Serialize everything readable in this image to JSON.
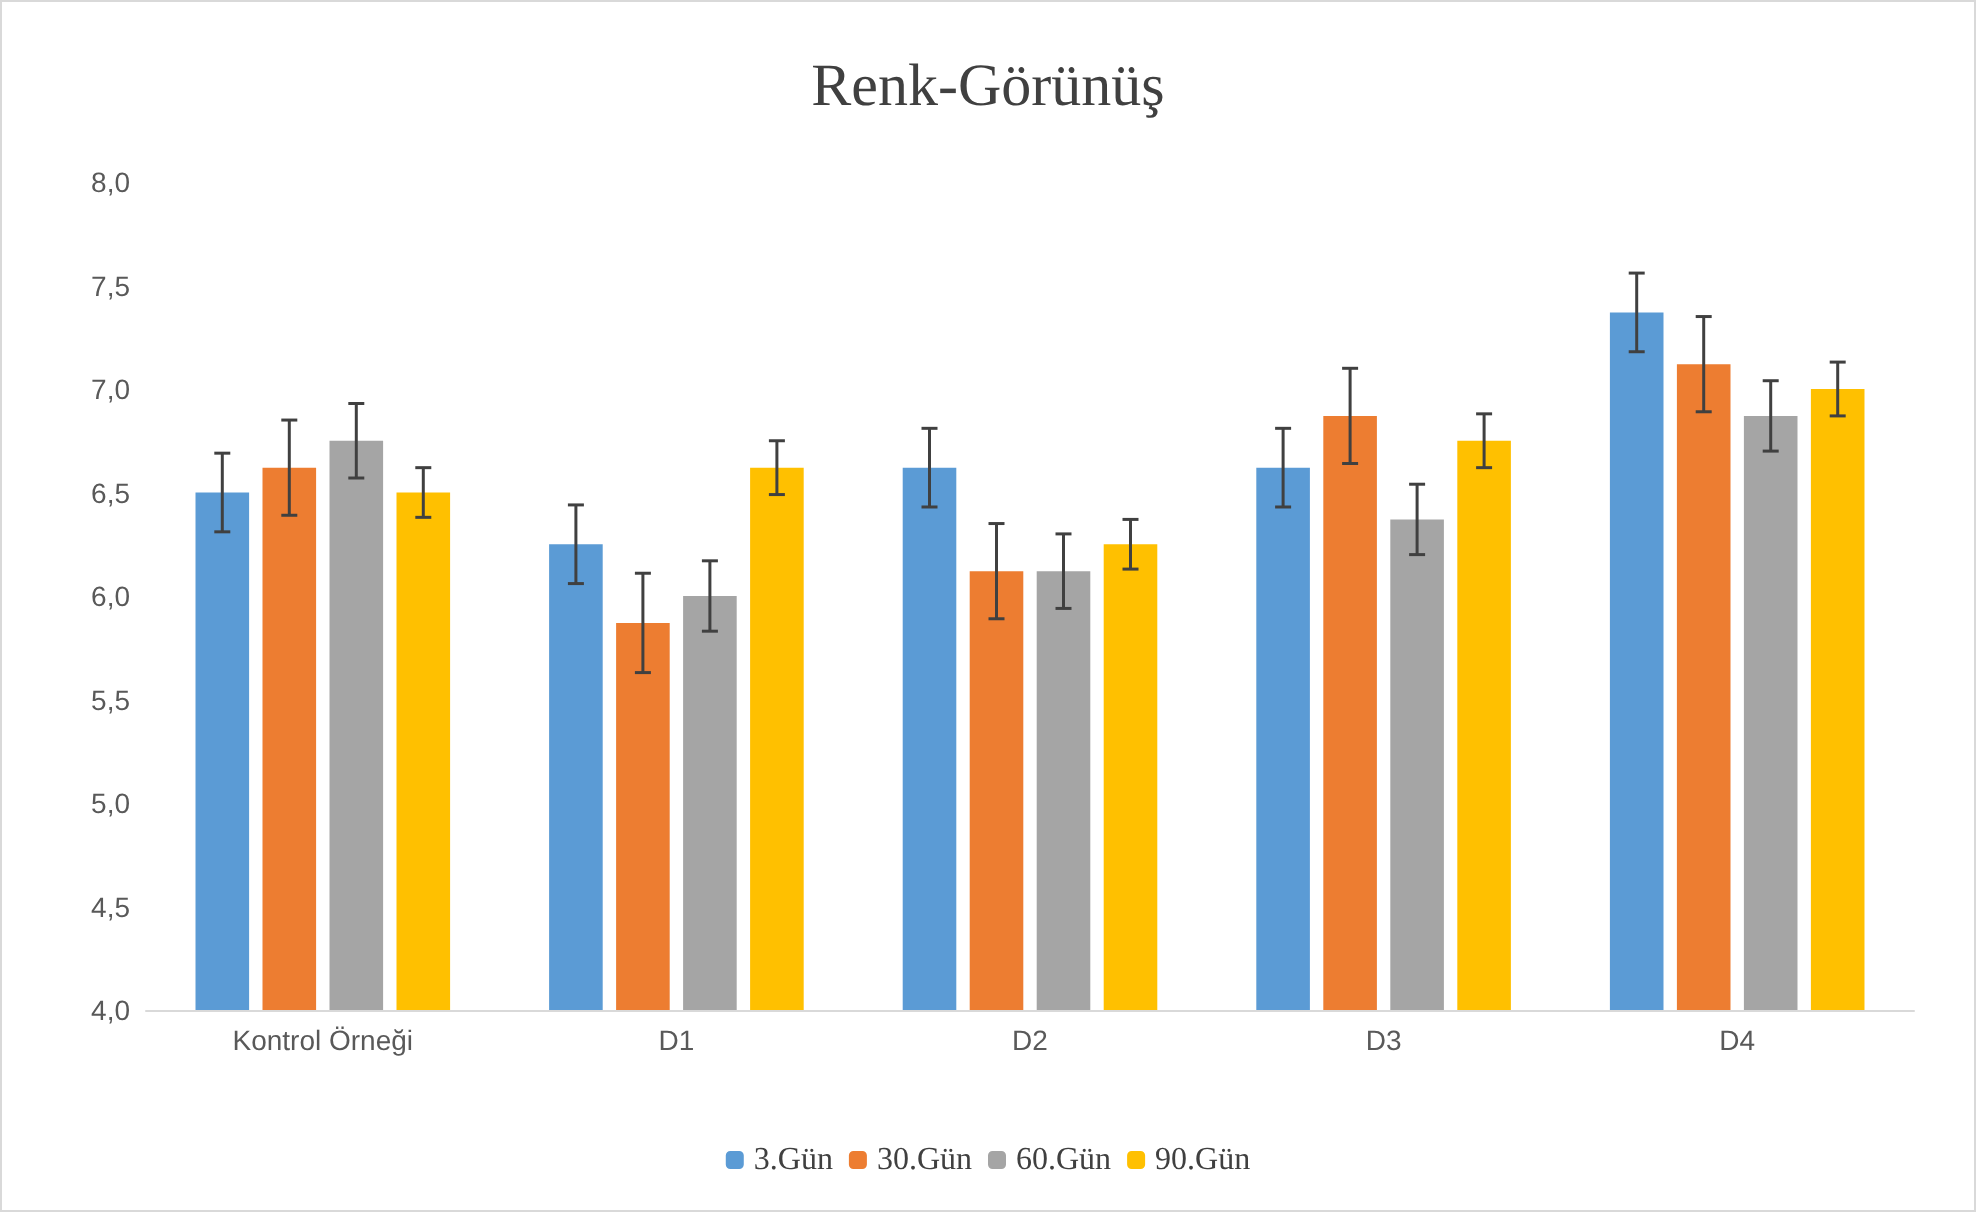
{
  "chart_data": {
    "type": "bar",
    "title": "Renk-Görünüş",
    "categories": [
      "Kontrol Örneği",
      "D1",
      "D2",
      "D3",
      "D4"
    ],
    "series": [
      {
        "name": "3.Gün",
        "color": "#5b9bd5",
        "values": [
          6.5,
          6.25,
          6.62,
          6.62,
          7.37
        ],
        "errors": [
          0.19,
          0.19,
          0.19,
          0.19,
          0.19
        ]
      },
      {
        "name": "30.Gün",
        "color": "#ed7d31",
        "values": [
          6.62,
          5.87,
          6.12,
          6.87,
          7.12
        ],
        "errors": [
          0.23,
          0.24,
          0.23,
          0.23,
          0.23
        ]
      },
      {
        "name": "60.Gün",
        "color": "#a5a5a5",
        "values": [
          6.75,
          6.0,
          6.12,
          6.37,
          6.87
        ],
        "errors": [
          0.18,
          0.17,
          0.18,
          0.17,
          0.17
        ]
      },
      {
        "name": "90.Gün",
        "color": "#ffc000",
        "values": [
          6.5,
          6.62,
          6.25,
          6.75,
          7.0
        ],
        "errors": [
          0.12,
          0.13,
          0.12,
          0.13,
          0.13
        ]
      }
    ],
    "ylim": [
      4,
      8
    ],
    "yticks": [
      {
        "value": 4,
        "label": "4,0"
      },
      {
        "value": 4.5,
        "label": "4,5"
      },
      {
        "value": 5,
        "label": "5,0"
      },
      {
        "value": 5.5,
        "label": "5,5"
      },
      {
        "value": 6,
        "label": "6,0"
      },
      {
        "value": 6.5,
        "label": "6,5"
      },
      {
        "value": 7,
        "label": "7,0"
      },
      {
        "value": 7.5,
        "label": "7,5"
      },
      {
        "value": 8,
        "label": "8,0"
      }
    ],
    "grid": false,
    "legend": "bottom"
  }
}
